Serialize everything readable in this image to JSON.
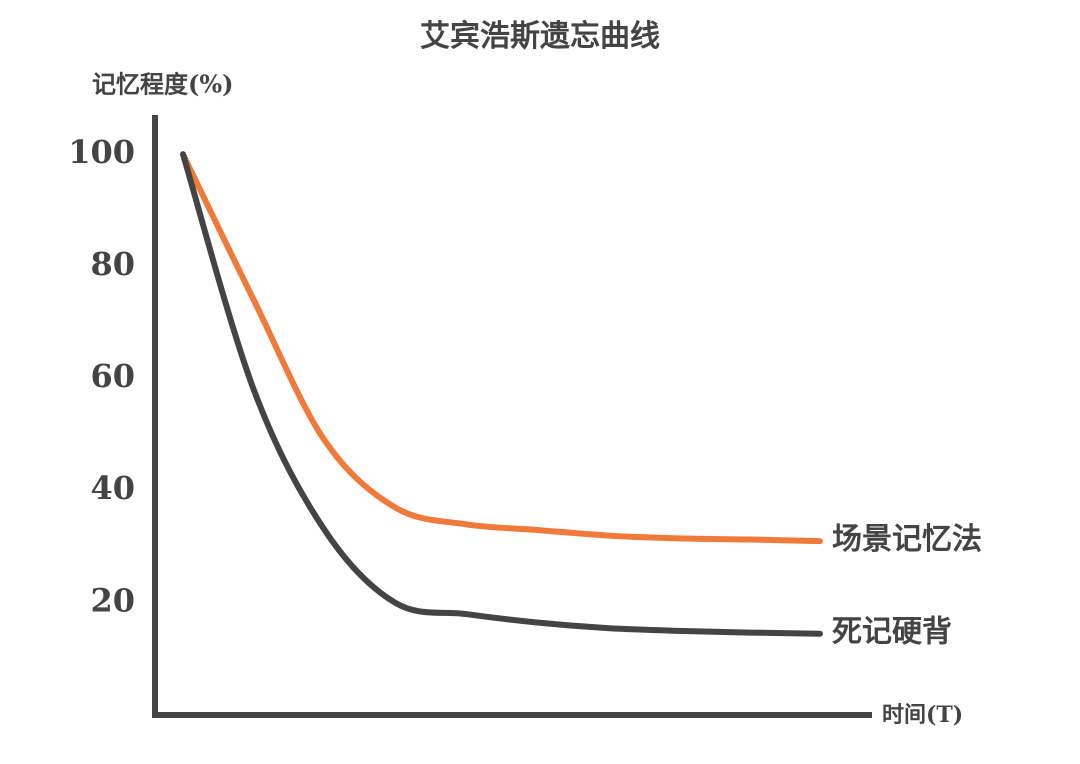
{
  "chart_data": {
    "type": "line",
    "title": "艾宾浩斯遗忘曲线",
    "y_label": "记忆程度(%)",
    "x_label": "时间(T)",
    "categories": [
      null,
      null,
      null,
      null,
      null,
      null,
      null,
      null,
      null,
      null
    ],
    "series": [
      {
        "name": "场景记忆法",
        "color": "#f07a3a",
        "values": [
          100,
          74,
          49,
          37,
          34,
          33,
          32,
          31.5,
          31.3,
          31
        ]
      },
      {
        "name": "死记硬背",
        "color": "#454345",
        "values": [
          100,
          58,
          33,
          20,
          18,
          16.5,
          15.5,
          15,
          14.7,
          14.5
        ]
      }
    ],
    "ylim": [
      0,
      107
    ],
    "yticks": [
      20,
      40,
      60,
      80,
      100
    ],
    "grid": false
  }
}
